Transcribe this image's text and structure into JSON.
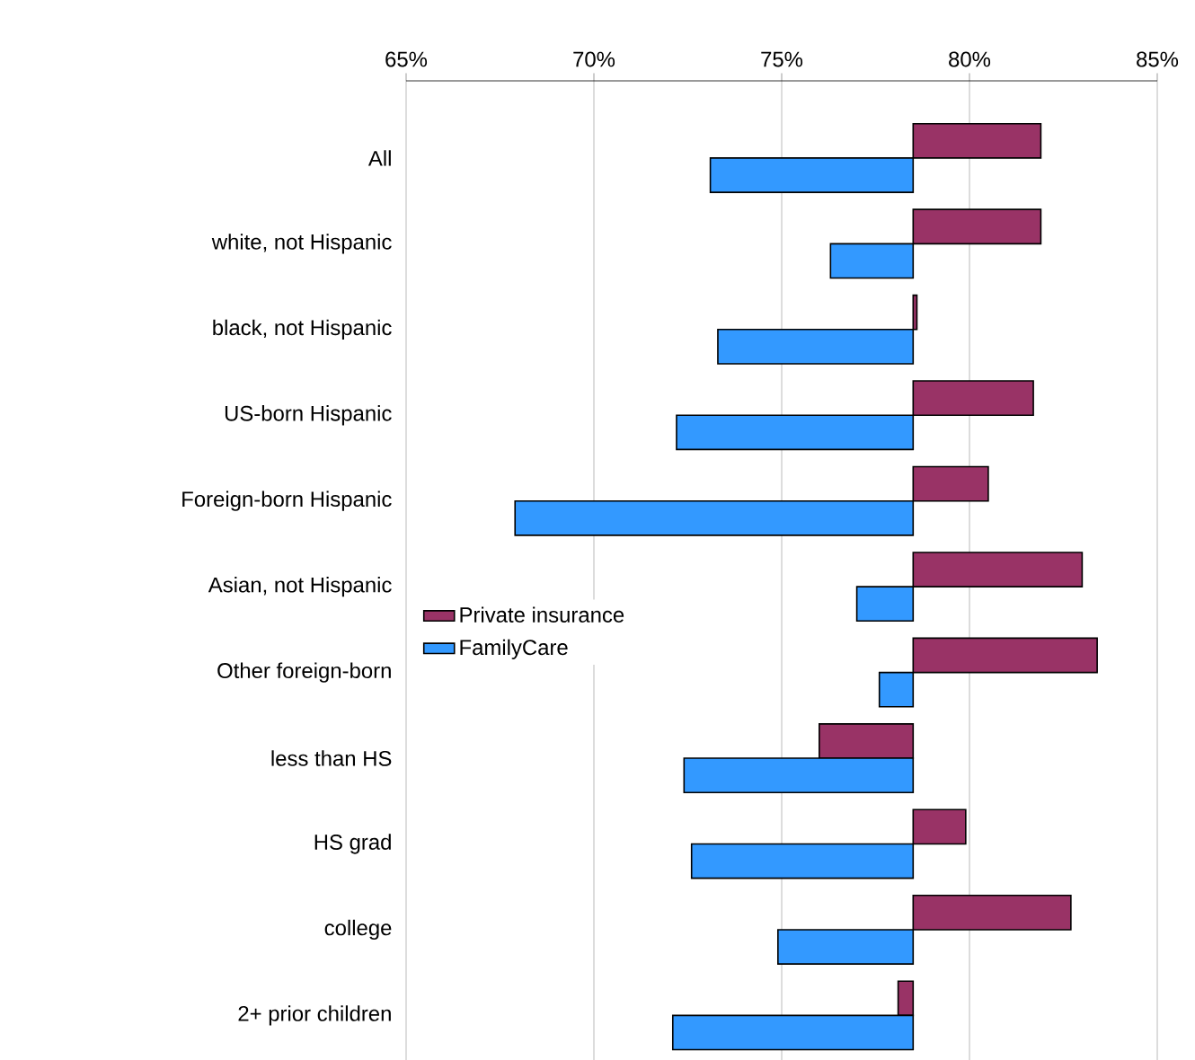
{
  "chart_data": {
    "type": "bar",
    "orientation": "horizontal",
    "categories": [
      "All",
      "white, not Hispanic",
      "black, not Hispanic",
      "US-born Hispanic",
      "Foreign-born Hispanic",
      "Asian, not Hispanic",
      "Other foreign-born",
      "less than HS",
      "HS grad",
      "college",
      "2+ prior children"
    ],
    "series": [
      {
        "name": "Private insurance",
        "color": "#993366",
        "base": [
          78.5,
          78.5,
          78.5,
          78.5,
          78.5,
          78.5,
          78.5,
          78.5,
          78.5,
          78.5,
          78.5
        ],
        "values": [
          3.4,
          3.4,
          0.1,
          3.2,
          2.0,
          4.5,
          4.9,
          -2.5,
          1.4,
          4.2,
          -0.4
        ]
      },
      {
        "name": "FamilyCare",
        "color": "#3399ff",
        "base": [
          78.5,
          78.5,
          78.5,
          78.5,
          78.5,
          78.5,
          78.5,
          78.5,
          78.5,
          78.5,
          78.5
        ],
        "values": [
          -5.4,
          -2.2,
          -5.2,
          -6.3,
          -10.6,
          -1.5,
          -0.9,
          -6.1,
          -5.9,
          -3.6,
          -6.4
        ]
      }
    ],
    "xlim": [
      65,
      85
    ],
    "xticks": [
      {
        "value": 65,
        "label": "65%"
      },
      {
        "value": 70,
        "label": "70%"
      },
      {
        "value": 75,
        "label": "75%"
      },
      {
        "value": 80,
        "label": "80%"
      },
      {
        "value": 85,
        "label": "85%"
      }
    ],
    "grid": "x",
    "legend": "left"
  }
}
